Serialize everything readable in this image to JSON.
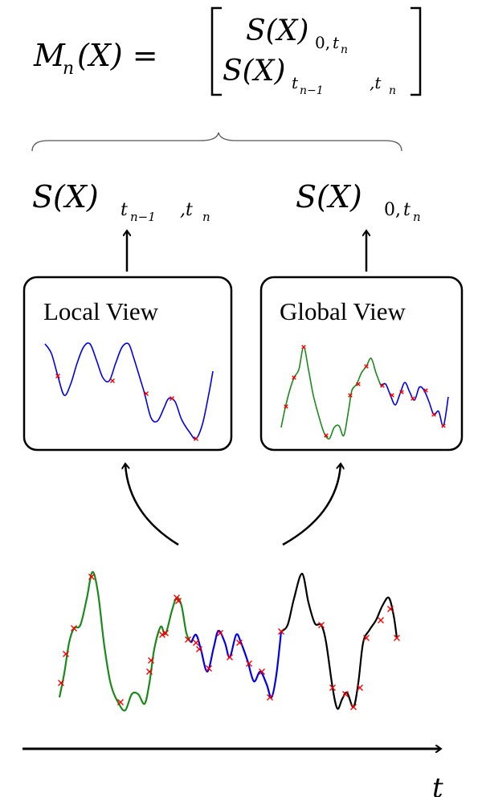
{
  "equation": {
    "lhs": "M",
    "lhs_sub": "n",
    "lhs_arg": "(X) =",
    "row1": "S(X)",
    "row1_sub": "0,",
    "row1_sub2": "t",
    "row1_sub3": "n",
    "row2": "S(X)",
    "row2_sub": "t",
    "row2_sub_n1": "n−1",
    "row2_sub_mid": ",t",
    "row2_sub_n": "n"
  },
  "outputs": {
    "local_signature": {
      "main": "S(X)",
      "sub": "t",
      "sub_n1": "n−1",
      "sub_mid": ",t",
      "sub_n": "n"
    },
    "global_signature": {
      "main": "S(X)",
      "sub": "0,",
      "sub_t": "t",
      "sub_n": "n"
    }
  },
  "views": {
    "local_title": "Local View",
    "global_title": "Global View"
  },
  "time_axis": {
    "label": "t"
  },
  "colors": {
    "past_segment": "#1a8a1a",
    "window_segment": "#0000ee",
    "future_segment": "#000000",
    "sample_marker": "#ee0000",
    "outline": "#000000"
  }
}
